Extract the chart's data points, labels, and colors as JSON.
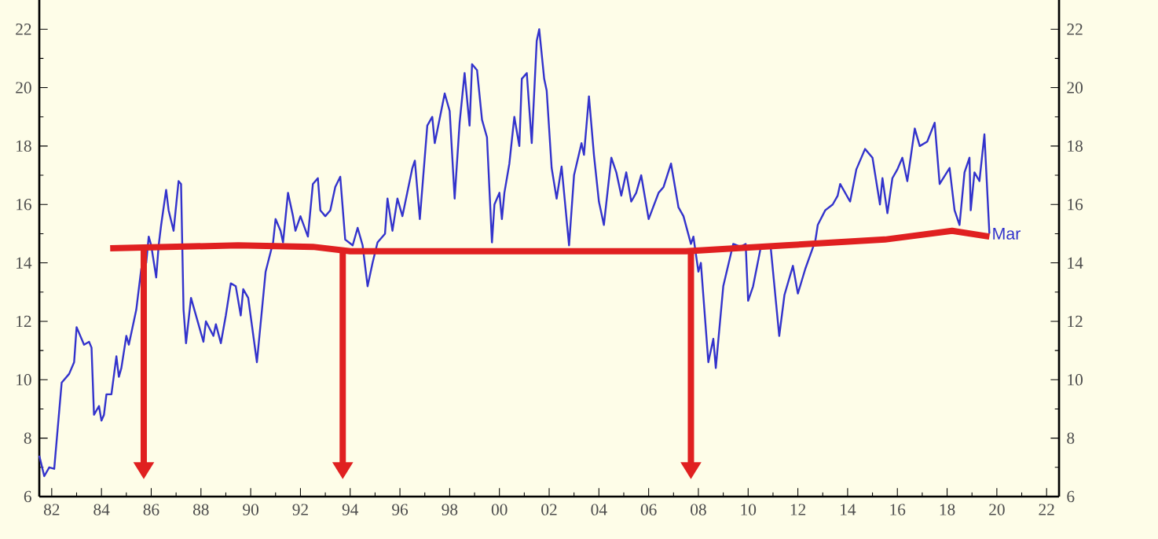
{
  "chart_data": {
    "type": "line",
    "xlim": [
      1981.5,
      2022.5
    ],
    "ylim": [
      6,
      23
    ],
    "y2lim": [
      6,
      23
    ],
    "xticks": [
      {
        "value": 1982,
        "label": "82"
      },
      {
        "value": 1984,
        "label": "84"
      },
      {
        "value": 1986,
        "label": "86"
      },
      {
        "value": 1988,
        "label": "88"
      },
      {
        "value": 1990,
        "label": "90"
      },
      {
        "value": 1992,
        "label": "92"
      },
      {
        "value": 1994,
        "label": "94"
      },
      {
        "value": 1996,
        "label": "96"
      },
      {
        "value": 1998,
        "label": "98"
      },
      {
        "value": 2000,
        "label": "00"
      },
      {
        "value": 2002,
        "label": "02"
      },
      {
        "value": 2004,
        "label": "04"
      },
      {
        "value": 2006,
        "label": "06"
      },
      {
        "value": 2008,
        "label": "08"
      },
      {
        "value": 2010,
        "label": "10"
      },
      {
        "value": 2012,
        "label": "12"
      },
      {
        "value": 2014,
        "label": "14"
      },
      {
        "value": 2016,
        "label": "16"
      },
      {
        "value": 2018,
        "label": "18"
      },
      {
        "value": 2020,
        "label": "20"
      },
      {
        "value": 2022,
        "label": "22"
      }
    ],
    "yticks": [
      6,
      8,
      10,
      12,
      14,
      16,
      18,
      20,
      22
    ],
    "y2ticks": [
      6,
      8,
      10,
      12,
      14,
      16,
      18,
      20,
      22
    ],
    "grid": false,
    "marker": "none",
    "series": [
      {
        "color": "#3333cc",
        "x": [
          1981.5,
          1981.7,
          1981.9,
          1982.1,
          1982.4,
          1982.7,
          1982.9,
          1983.0,
          1983.3,
          1983.5,
          1983.6,
          1983.7,
          1983.9,
          1984.0,
          1984.1,
          1984.2,
          1984.4,
          1984.6,
          1984.7,
          1984.8,
          1985.0,
          1985.1,
          1985.4,
          1985.6,
          1985.8,
          1985.9,
          1986.0,
          1986.2,
          1986.3,
          1986.4,
          1986.6,
          1986.7,
          1986.9,
          1987.1,
          1987.2,
          1987.3,
          1987.4,
          1987.6,
          1987.9,
          1988.1,
          1988.2,
          1988.5,
          1988.6,
          1988.8,
          1989.0,
          1989.2,
          1989.4,
          1989.6,
          1989.7,
          1989.9,
          1990.25,
          1990.6,
          1990.9,
          1991.0,
          1991.2,
          1991.3,
          1991.5,
          1991.7,
          1991.8,
          1992.0,
          1992.3,
          1992.5,
          1992.7,
          1992.8,
          1993.0,
          1993.2,
          1993.4,
          1993.6,
          1993.8,
          1994.1,
          1994.3,
          1994.5,
          1994.7,
          1994.9,
          1995.1,
          1995.4,
          1995.5,
          1995.7,
          1995.9,
          1996.1,
          1996.5,
          1996.6,
          1996.8,
          1997.1,
          1997.3,
          1997.4,
          1997.8,
          1998.0,
          1998.2,
          1998.4,
          1998.6,
          1998.8,
          1998.9,
          1999.1,
          1999.3,
          1999.5,
          1999.7,
          1999.8,
          2000.0,
          2000.1,
          2000.2,
          2000.4,
          2000.6,
          2000.8,
          2000.9,
          2001.1,
          2001.3,
          2001.5,
          2001.6,
          2001.8,
          2001.9,
          2002.1,
          2002.3,
          2002.5,
          2002.8,
          2003.0,
          2003.3,
          2003.4,
          2003.6,
          2003.8,
          2004.0,
          2004.2,
          2004.5,
          2004.7,
          2004.9,
          2005.1,
          2005.3,
          2005.5,
          2005.7,
          2006.0,
          2006.4,
          2006.6,
          2006.9,
          2007.2,
          2007.4,
          2007.7,
          2007.8,
          2008.0,
          2008.1,
          2008.4,
          2008.6,
          2008.7,
          2009.0,
          2009.4,
          2009.7,
          2009.9,
          2010.0,
          2010.2,
          2010.5,
          2010.9,
          2011.25,
          2011.46,
          2011.8,
          2012.0,
          2012.3,
          2012.7,
          2012.8,
          2013.1,
          2013.4,
          2013.6,
          2013.7,
          2014.1,
          2014.35,
          2014.7,
          2015.0,
          2015.3,
          2015.4,
          2015.6,
          2015.8,
          2016.0,
          2016.2,
          2016.4,
          2016.7,
          2016.9,
          2017.2,
          2017.5,
          2017.7,
          2018.1,
          2018.3,
          2018.5,
          2018.7,
          2018.9,
          2018.95,
          2019.1,
          2019.3,
          2019.5,
          2019.7
        ],
        "values": [
          7.4,
          6.7,
          7.0,
          6.95,
          9.9,
          10.2,
          10.6,
          11.8,
          11.2,
          11.3,
          11.1,
          8.8,
          9.1,
          8.6,
          8.8,
          9.5,
          9.5,
          10.8,
          10.1,
          10.4,
          11.5,
          11.2,
          12.4,
          13.8,
          14.0,
          14.9,
          14.6,
          13.5,
          14.6,
          15.3,
          16.5,
          15.8,
          15.1,
          16.8,
          16.7,
          12.4,
          11.25,
          12.8,
          11.9,
          11.3,
          12.0,
          11.5,
          11.9,
          11.25,
          12.2,
          13.3,
          13.2,
          12.2,
          13.1,
          12.8,
          10.6,
          13.7,
          14.7,
          15.5,
          15.1,
          14.7,
          16.4,
          15.6,
          15.1,
          15.6,
          14.9,
          16.7,
          16.9,
          15.8,
          15.6,
          15.8,
          16.6,
          16.95,
          14.8,
          14.6,
          15.2,
          14.6,
          13.2,
          14.0,
          14.7,
          15.0,
          16.2,
          15.1,
          16.2,
          15.6,
          17.25,
          17.5,
          15.5,
          18.7,
          19.0,
          18.1,
          19.8,
          19.2,
          16.2,
          18.8,
          20.5,
          18.7,
          20.8,
          20.6,
          18.9,
          18.3,
          14.7,
          16.0,
          16.4,
          15.5,
          16.4,
          17.4,
          19.0,
          18.0,
          20.3,
          20.5,
          18.1,
          21.6,
          22.0,
          20.3,
          19.9,
          17.25,
          16.2,
          17.3,
          14.6,
          17.0,
          18.1,
          17.7,
          19.7,
          17.7,
          16.1,
          15.3,
          17.6,
          17.1,
          16.3,
          17.1,
          16.1,
          16.4,
          17.0,
          15.5,
          16.4,
          16.6,
          17.4,
          15.9,
          15.6,
          14.65,
          14.9,
          13.7,
          14.0,
          10.6,
          11.4,
          10.4,
          13.2,
          14.65,
          14.55,
          14.65,
          12.7,
          13.2,
          14.5,
          14.6,
          11.5,
          12.9,
          13.9,
          12.95,
          13.8,
          14.75,
          15.3,
          15.8,
          16.0,
          16.3,
          16.7,
          16.1,
          17.2,
          17.9,
          17.6,
          16.0,
          16.9,
          15.7,
          16.9,
          17.2,
          17.6,
          16.8,
          18.6,
          18.0,
          18.15,
          18.8,
          16.7,
          17.25,
          15.8,
          15.3,
          17.1,
          17.6,
          15.8,
          17.1,
          16.8,
          18.4,
          15.0
        ]
      },
      {
        "color": "#e02020",
        "x": [
          1984.35,
          1989.5,
          1992.5,
          1994.0,
          2001.5,
          2007.5,
          2011.5,
          2015.5,
          2018.2,
          2019.7
        ],
        "values": [
          14.5,
          14.6,
          14.55,
          14.4,
          14.4,
          14.4,
          14.6,
          14.8,
          15.1,
          14.9
        ]
      }
    ],
    "ref_lines": [
      {
        "axis": "x",
        "value": 1985.7,
        "color": "#e02020"
      },
      {
        "axis": "x",
        "value": 1993.7,
        "color": "#e02020"
      },
      {
        "axis": "x",
        "value": 2007.7,
        "color": "#e02020"
      }
    ],
    "annotations": [
      {
        "text": "Mar",
        "x": 2019.7,
        "y": 15.0
      }
    ]
  }
}
